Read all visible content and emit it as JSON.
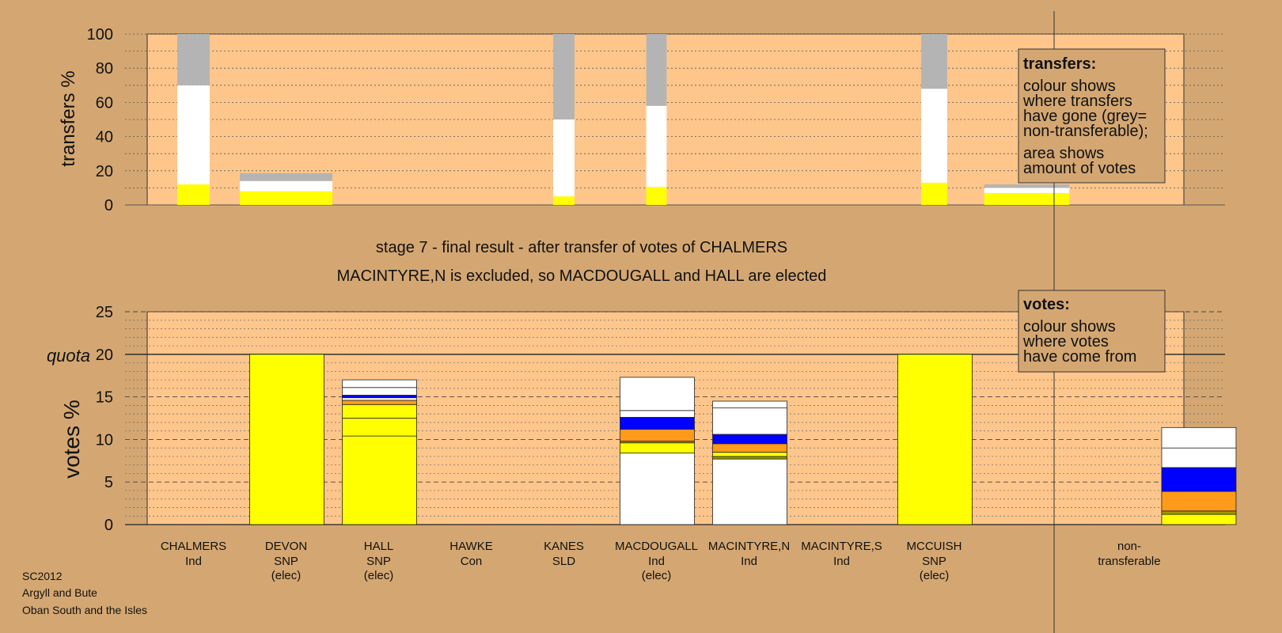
{
  "colors": {
    "background": "#D4A772",
    "plot_fill": "#FFC68C",
    "elected_yellow": "#FFFF00",
    "white": "#FFFFFF",
    "grey": "#B4B4B4",
    "orange": "#FF9A1A",
    "blue": "#0000FF",
    "olive": "#9A9A00"
  },
  "title": {
    "line1": "stage 7 - final result - after transfer of votes of CHALMERS",
    "line2": "MACINTYRE,N is excluded, so MACDOUGALL and HALL are elected"
  },
  "footer": {
    "line1": "SC2012",
    "line2": "Argyll and Bute",
    "line3": "Oban South and the Isles"
  },
  "legend_transfers": {
    "heading": "transfers:",
    "body1": [
      "colour shows",
      "where transfers",
      "have gone (grey=",
      "non-transferable);"
    ],
    "body2": [
      "area shows",
      "amount of votes"
    ]
  },
  "legend_votes": {
    "heading": "votes:",
    "body": [
      "colour shows",
      "where votes",
      "have come from"
    ]
  },
  "candidates": [
    {
      "name": "CHALMERS",
      "party": "Ind",
      "status": ""
    },
    {
      "name": "DEVON",
      "party": "SNP",
      "status": "(elec)"
    },
    {
      "name": "HALL",
      "party": "SNP",
      "status": "(elec)"
    },
    {
      "name": "HAWKE",
      "party": "Con",
      "status": ""
    },
    {
      "name": "KANES",
      "party": "SLD",
      "status": ""
    },
    {
      "name": "MACDOUGALL",
      "party": "Ind",
      "status": "(elec)"
    },
    {
      "name": "MACINTYRE,N",
      "party": "Ind",
      "status": ""
    },
    {
      "name": "MACINTYRE,S",
      "party": "Ind",
      "status": ""
    },
    {
      "name": "MCCUISH",
      "party": "SNP",
      "status": "(elec)"
    },
    {
      "name": "non-",
      "party": "transferable",
      "status": ""
    }
  ],
  "chart_data": [
    {
      "type": "bar",
      "stacked": true,
      "ylabel": "transfers %",
      "ylim": [
        0,
        100
      ],
      "yticks": [
        0,
        20,
        40,
        60,
        80,
        100
      ],
      "bars": [
        {
          "slot": 0.5,
          "width_units": 0.35,
          "segments": [
            {
              "value": 12,
              "color": "#FFFF00"
            },
            {
              "value": 58,
              "color": "#FFFFFF"
            },
            {
              "value": 30,
              "color": "#B4B4B4"
            }
          ]
        },
        {
          "slot": 1.5,
          "width_units": 1.0,
          "segments": [
            {
              "value": 8,
              "color": "#FFFF00"
            },
            {
              "value": 6,
              "color": "#FFFFFF"
            },
            {
              "value": 4.5,
              "color": "#B4B4B4"
            }
          ]
        },
        {
          "slot": 4.5,
          "width_units": 0.23,
          "segments": [
            {
              "value": 5,
              "color": "#FFFF00"
            },
            {
              "value": 45,
              "color": "#FFFFFF"
            },
            {
              "value": 50,
              "color": "#B4B4B4"
            }
          ]
        },
        {
          "slot": 5.5,
          "width_units": 0.22,
          "segments": [
            {
              "value": 10.5,
              "color": "#FFFF00"
            },
            {
              "value": 47.5,
              "color": "#FFFFFF"
            },
            {
              "value": 42,
              "color": "#B4B4B4"
            }
          ]
        },
        {
          "slot": 8.5,
          "width_units": 0.28,
          "segments": [
            {
              "value": 13,
              "color": "#FFFF00"
            },
            {
              "value": 55,
              "color": "#FFFFFF"
            },
            {
              "value": 32,
              "color": "#B4B4B4"
            }
          ]
        },
        {
          "slot": 9.5,
          "width_units": 0.92,
          "segments": [
            {
              "value": 7,
              "color": "#FFFF00"
            },
            {
              "value": 3,
              "color": "#FFFFFF"
            },
            {
              "value": 2,
              "color": "#B4B4B4"
            }
          ]
        }
      ]
    },
    {
      "type": "bar",
      "stacked": true,
      "ylabel": "votes %",
      "quota_label": "quota",
      "quota": 20,
      "ylim": [
        0,
        25
      ],
      "yticks": [
        0,
        5,
        10,
        15,
        20,
        25
      ],
      "categories": [
        "CHALMERS",
        "DEVON",
        "HALL",
        "HAWKE",
        "KANES",
        "MACDOUGALL",
        "MACINTYRE,N",
        "MACINTYRE,S",
        "MCCUISH",
        "non-transferable"
      ],
      "bars": [
        {
          "slot": 1,
          "segments": [
            {
              "value": 20,
              "color": "#FFFF00"
            }
          ]
        },
        {
          "slot": 2,
          "segments": [
            {
              "value": 10.4,
              "color": "#FFFF00"
            },
            {
              "value": 2.1,
              "color": "#FFFF00"
            },
            {
              "value": 1.6,
              "color": "#FFFF00"
            },
            {
              "value": 0.5,
              "color": "#FF9A1A"
            },
            {
              "value": 0.3,
              "color": "#FFFFFF"
            },
            {
              "value": 0.3,
              "color": "#0000FF"
            },
            {
              "value": 0.9,
              "color": "#FFFFFF"
            },
            {
              "value": 0.9,
              "color": "#FFFFFF"
            }
          ]
        },
        {
          "slot": 5,
          "segments": [
            {
              "value": 8.4,
              "color": "#FFFFFF"
            },
            {
              "value": 1.2,
              "color": "#FFFF00"
            },
            {
              "value": 0.2,
              "color": "#9A9A00"
            },
            {
              "value": 1.4,
              "color": "#FF9A1A"
            },
            {
              "value": 1.4,
              "color": "#0000FF"
            },
            {
              "value": 0.8,
              "color": "#FFFFFF"
            },
            {
              "value": 3.9,
              "color": "#FFFFFF"
            }
          ]
        },
        {
          "slot": 6,
          "segments": [
            {
              "value": 7.7,
              "color": "#FFFFFF"
            },
            {
              "value": 0.3,
              "color": "#9A9A00"
            },
            {
              "value": 0.5,
              "color": "#FFFF00"
            },
            {
              "value": 1.0,
              "color": "#FF9A1A"
            },
            {
              "value": 1.1,
              "color": "#0000FF"
            },
            {
              "value": 3.1,
              "color": "#FFFFFF"
            },
            {
              "value": 0.8,
              "color": "#FFFFFF"
            }
          ]
        },
        {
          "slot": 8,
          "segments": [
            {
              "value": 20,
              "color": "#FFFF00"
            }
          ]
        },
        {
          "slot": 10.85,
          "segments": [
            {
              "value": 1.2,
              "color": "#FFFF00"
            },
            {
              "value": 0.4,
              "color": "#9A9A00"
            },
            {
              "value": 2.3,
              "color": "#FF9A1A"
            },
            {
              "value": 2.8,
              "color": "#0000FF"
            },
            {
              "value": 2.3,
              "color": "#FFFFFF"
            },
            {
              "value": 2.4,
              "color": "#FFFFFF"
            }
          ]
        }
      ]
    }
  ]
}
